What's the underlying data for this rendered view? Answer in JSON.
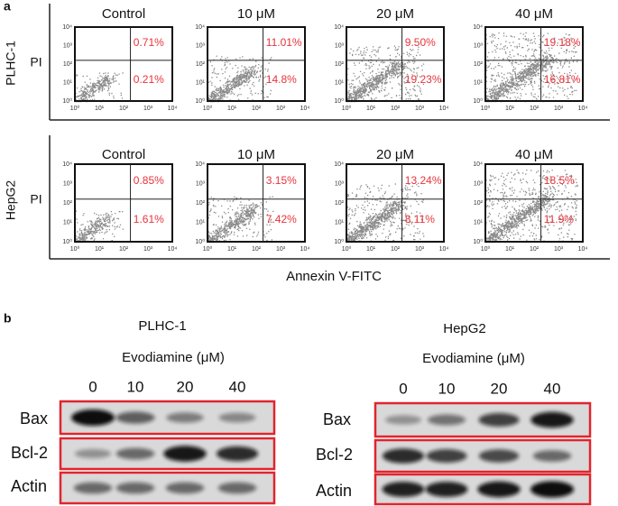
{
  "panel_a": {
    "label": "a",
    "x_axis_label": "Annexin V-FITC",
    "axis_ticks": [
      "10⁰",
      "10¹",
      "10²",
      "10³",
      "10⁴"
    ],
    "rows": [
      {
        "cell_line": "PLHC-1",
        "y_axis_label": "PI",
        "plots": [
          {
            "title": "Control",
            "upper_right": "0.71%",
            "lower_right": "0.21%"
          },
          {
            "title": "10 μM",
            "upper_right": "11.01%",
            "lower_right": "14.8%"
          },
          {
            "title": "20 μM",
            "upper_right": "9.50%",
            "lower_right": "19.23%"
          },
          {
            "title": "40 μM",
            "upper_right": "19.18%",
            "lower_right": "16.81%"
          }
        ]
      },
      {
        "cell_line": "HepG2",
        "y_axis_label": "PI",
        "plots": [
          {
            "title": "Control",
            "upper_right": "0.85%",
            "lower_right": "1.61%"
          },
          {
            "title": "10 μM",
            "upper_right": "3.15%",
            "lower_right": "7.42%"
          },
          {
            "title": "20 μM",
            "upper_right": "13.24%",
            "lower_right": "8.11%"
          },
          {
            "title": "40 μM",
            "upper_right": "18.5%",
            "lower_right": "11.9%"
          }
        ]
      }
    ]
  },
  "panel_b": {
    "label": "b",
    "blots": [
      {
        "cell_line": "PLHC-1",
        "treatment": "Evodiamine (μM)",
        "doses": [
          "0",
          "10",
          "20",
          "40"
        ],
        "proteins": [
          "Bax",
          "Bcl-2",
          "Actin"
        ]
      },
      {
        "cell_line": "HepG2",
        "treatment": "Evodiamine (μM)",
        "doses": [
          "0",
          "10",
          "20",
          "40"
        ],
        "proteins": [
          "Bax",
          "Bcl-2",
          "Actin"
        ]
      }
    ]
  }
}
